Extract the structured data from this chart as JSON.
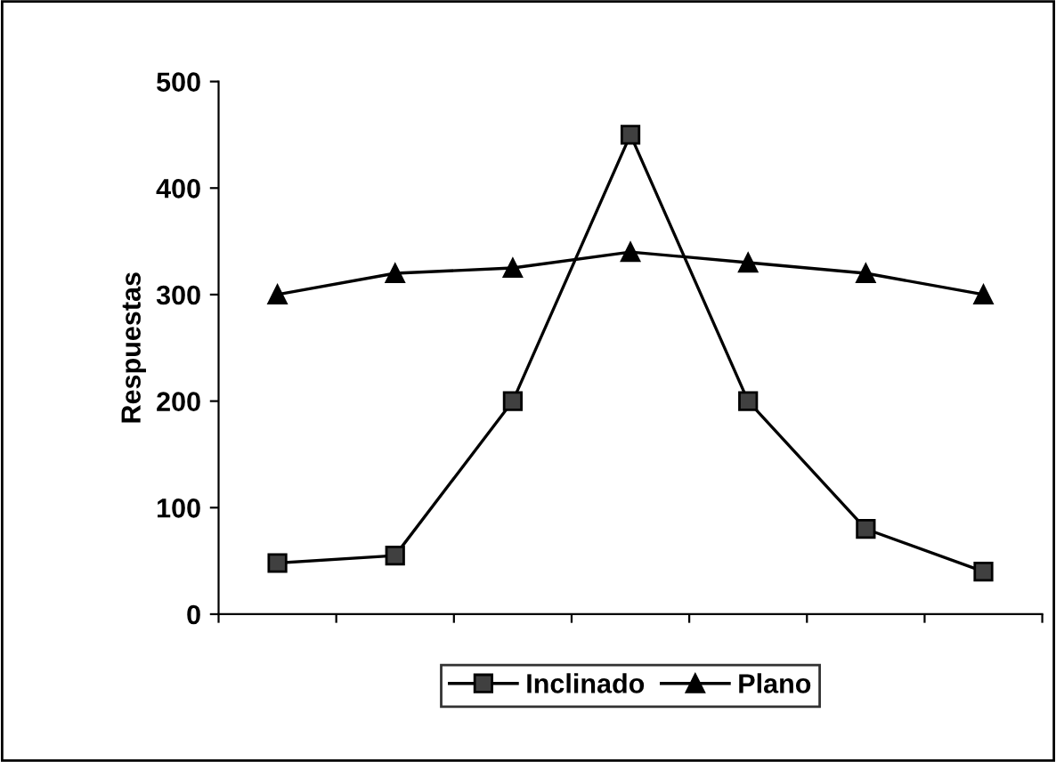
{
  "chart_data": {
    "type": "line",
    "ylabel": "Respuestas",
    "categories": [
      null,
      null,
      null,
      null,
      null,
      null,
      null
    ],
    "series": [
      {
        "name": "Inclinado",
        "color": "#404040",
        "marker": "square",
        "values": [
          48,
          55,
          200,
          450,
          200,
          80,
          40
        ]
      },
      {
        "name": "Plano",
        "color": "#000000",
        "marker": "triangle",
        "values": [
          300,
          320,
          325,
          340,
          330,
          320,
          300
        ]
      }
    ],
    "ylim": [
      0,
      500
    ],
    "yticks": [
      0,
      100,
      200,
      300,
      400,
      500
    ],
    "grid": false,
    "legend": "bottom",
    "line_style": "solid"
  }
}
